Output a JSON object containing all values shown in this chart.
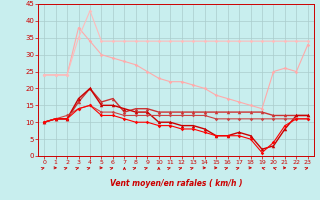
{
  "xlabel": "Vent moyen/en rafales ( km/h )",
  "xlim": [
    -0.5,
    23.5
  ],
  "ylim": [
    0,
    45
  ],
  "yticks": [
    0,
    5,
    10,
    15,
    20,
    25,
    30,
    35,
    40,
    45
  ],
  "xticks": [
    0,
    1,
    2,
    3,
    4,
    5,
    6,
    7,
    8,
    9,
    10,
    11,
    12,
    13,
    14,
    15,
    16,
    17,
    18,
    19,
    20,
    21,
    22,
    23
  ],
  "bg_color": "#c8eeee",
  "grid_color": "#aacccc",
  "series": [
    {
      "x": [
        0,
        1,
        2,
        3,
        4,
        5,
        6,
        7,
        8,
        9,
        10,
        11,
        12,
        13,
        14,
        15,
        16,
        17,
        18,
        19,
        20,
        21,
        22,
        23
      ],
      "y": [
        24,
        24,
        24,
        38,
        34,
        30,
        29,
        28,
        27,
        25,
        23,
        22,
        22,
        21,
        20,
        18,
        17,
        16,
        15,
        14,
        25,
        26,
        25,
        33
      ],
      "color": "#ffaaaa",
      "marker": "D",
      "markersize": 1.8,
      "linewidth": 0.8
    },
    {
      "x": [
        0,
        1,
        2,
        3,
        4,
        5,
        6,
        7,
        8,
        9,
        10,
        11,
        12,
        13,
        14,
        15,
        16,
        17,
        18,
        19,
        20,
        21,
        22,
        23
      ],
      "y": [
        24,
        24,
        24,
        35,
        43,
        34,
        34,
        34,
        34,
        34,
        34,
        34,
        34,
        34,
        34,
        34,
        34,
        34,
        34,
        34,
        34,
        34,
        34,
        34
      ],
      "color": "#ffbbbb",
      "marker": "D",
      "markersize": 1.8,
      "linewidth": 0.8
    },
    {
      "x": [
        0,
        1,
        2,
        3,
        4,
        5,
        6,
        7,
        8,
        9,
        10,
        11,
        12,
        13,
        14,
        15,
        16,
        17,
        18,
        19,
        20,
        21,
        22,
        23
      ],
      "y": [
        10,
        11,
        11,
        16,
        20,
        16,
        17,
        13,
        14,
        14,
        13,
        13,
        13,
        13,
        13,
        13,
        13,
        13,
        13,
        13,
        12,
        12,
        12,
        12
      ],
      "color": "#cc3333",
      "marker": "^",
      "markersize": 2.5,
      "linewidth": 1.0
    },
    {
      "x": [
        0,
        1,
        2,
        3,
        4,
        5,
        6,
        7,
        8,
        9,
        10,
        11,
        12,
        13,
        14,
        15,
        16,
        17,
        18,
        19,
        20,
        21,
        22,
        23
      ],
      "y": [
        10,
        11,
        11,
        17,
        20,
        15,
        15,
        14,
        13,
        13,
        10,
        10,
        9,
        9,
        8,
        6,
        6,
        7,
        6,
        2,
        3,
        8,
        12,
        12
      ],
      "color": "#cc0000",
      "marker": "^",
      "markersize": 2.5,
      "linewidth": 1.0
    },
    {
      "x": [
        0,
        1,
        2,
        3,
        4,
        5,
        6,
        7,
        8,
        9,
        10,
        11,
        12,
        13,
        14,
        15,
        16,
        17,
        18,
        19,
        20,
        21,
        22,
        23
      ],
      "y": [
        10,
        11,
        12,
        14,
        15,
        13,
        13,
        12,
        12,
        12,
        12,
        12,
        12,
        12,
        12,
        11,
        11,
        11,
        11,
        11,
        11,
        11,
        11,
        11
      ],
      "color": "#cc4444",
      "marker": "D",
      "markersize": 1.8,
      "linewidth": 0.8
    },
    {
      "x": [
        0,
        1,
        2,
        3,
        4,
        5,
        6,
        7,
        8,
        9,
        10,
        11,
        12,
        13,
        14,
        15,
        16,
        17,
        18,
        19,
        20,
        21,
        22,
        23
      ],
      "y": [
        10,
        11,
        11,
        14,
        15,
        12,
        12,
        11,
        10,
        10,
        9,
        9,
        8,
        8,
        7,
        6,
        6,
        6,
        5,
        1,
        4,
        9,
        11,
        11
      ],
      "color": "#ff0000",
      "marker": "D",
      "markersize": 1.8,
      "linewidth": 0.8
    }
  ],
  "arrows": {
    "angles_deg": [
      45,
      90,
      45,
      45,
      45,
      90,
      45,
      0,
      45,
      45,
      0,
      45,
      45,
      45,
      90,
      90,
      45,
      45,
      90,
      315,
      315,
      90,
      45,
      45
    ]
  }
}
